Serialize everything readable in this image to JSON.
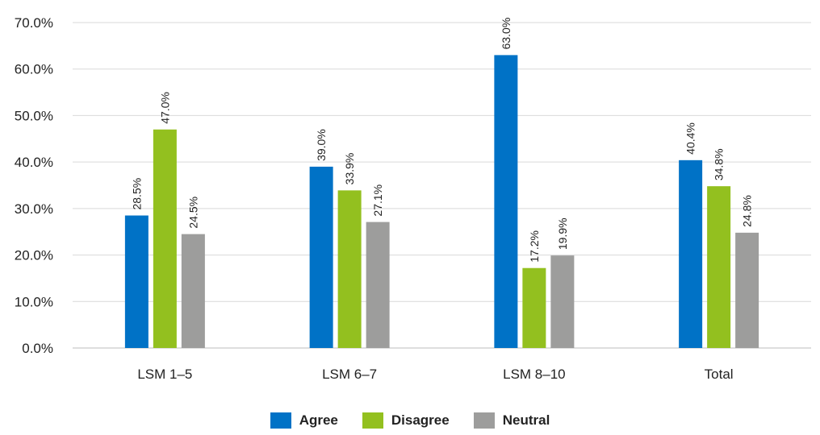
{
  "chart_data": {
    "type": "bar",
    "categories": [
      "LSM 1–5",
      "LSM 6–7",
      "LSM 8–10",
      "Total"
    ],
    "series": [
      {
        "name": "Agree",
        "color": "#0072c6",
        "values": [
          28.5,
          39.0,
          63.0,
          40.4
        ],
        "labels": [
          "28.5%",
          "39.0%",
          "63.0%",
          "40.4%"
        ]
      },
      {
        "name": "Disagree",
        "color": "#93c01f",
        "values": [
          47.0,
          33.9,
          17.2,
          34.8
        ],
        "labels": [
          "47.0%",
          "33.9%",
          "17.2%",
          "34.8%"
        ]
      },
      {
        "name": "Neutral",
        "color": "#9d9d9c",
        "values": [
          24.5,
          27.1,
          19.9,
          24.8
        ],
        "labels": [
          "24.5%",
          "27.1%",
          "19.9%",
          "24.8%"
        ]
      }
    ],
    "y_ticks": [
      "0.0%",
      "10.0%",
      "20.0%",
      "30.0%",
      "40.0%",
      "50.0%",
      "60.0%",
      "70.0%"
    ],
    "ylim": [
      0,
      70
    ],
    "grid": true,
    "legend_position": "bottom"
  }
}
